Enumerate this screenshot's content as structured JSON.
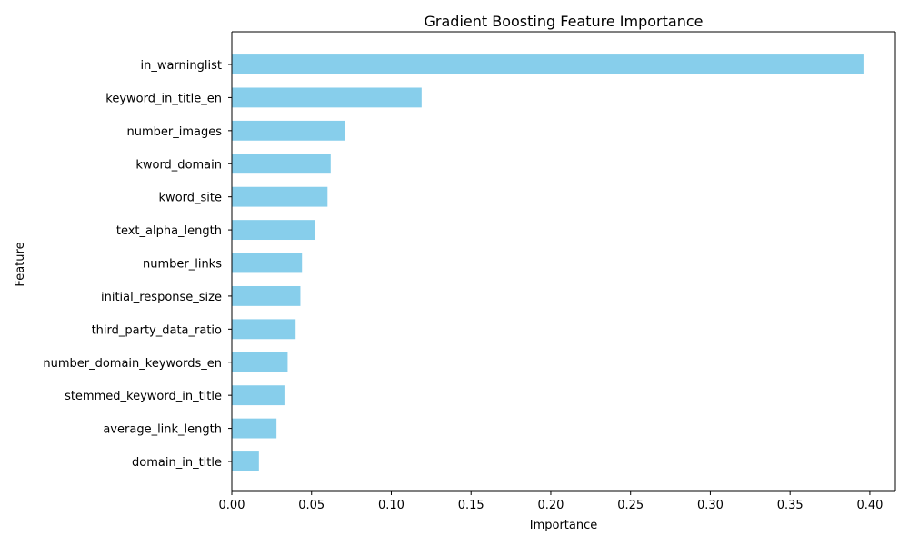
{
  "chart_data": {
    "type": "bar",
    "orientation": "horizontal",
    "title": "Gradient Boosting Feature Importance",
    "xlabel": "Importance",
    "ylabel": "Feature",
    "categories": [
      "in_warninglist",
      "keyword_in_title_en",
      "number_images",
      "kword_domain",
      "kword_site",
      "text_alpha_length",
      "number_links",
      "initial_response_size",
      "third_party_data_ratio",
      "number_domain_keywords_en",
      "stemmed_keyword_in_title",
      "average_link_length",
      "domain_in_title"
    ],
    "values": [
      0.396,
      0.119,
      0.071,
      0.062,
      0.06,
      0.052,
      0.044,
      0.043,
      0.04,
      0.035,
      0.033,
      0.028,
      0.017
    ],
    "xlim": [
      0.0,
      0.416
    ],
    "xticks": [
      "0.00",
      "0.05",
      "0.10",
      "0.15",
      "0.20",
      "0.25",
      "0.30",
      "0.35",
      "0.40"
    ],
    "grid": false,
    "bar_color": "#87ceeb"
  }
}
